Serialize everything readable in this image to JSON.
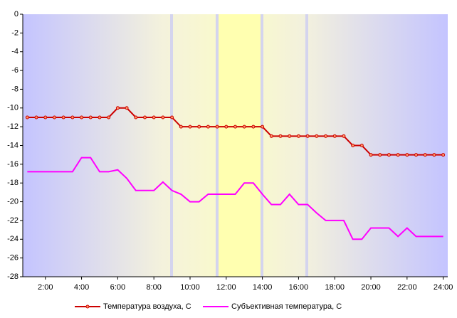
{
  "chart_data": {
    "type": "line",
    "x": [
      1,
      1.5,
      2,
      2.5,
      3,
      3.5,
      4,
      4.5,
      5,
      5.5,
      6,
      6.5,
      7,
      7.5,
      8,
      8.5,
      9,
      9.5,
      10,
      10.5,
      11,
      11.5,
      12,
      12.5,
      13,
      13.5,
      14,
      14.5,
      15,
      15.5,
      16,
      16.5,
      17,
      17.5,
      18,
      18.5,
      19,
      19.5,
      20,
      20.5,
      21,
      21.5,
      22,
      22.5,
      23,
      23.5,
      24
    ],
    "series": [
      {
        "name": "Температура воздуха, С",
        "color": "#cc0000",
        "markers": true,
        "values": [
          -11,
          -11,
          -11,
          -11,
          -11,
          -11,
          -11,
          -11,
          -11,
          -11,
          -10,
          -10,
          -11,
          -11,
          -11,
          -11,
          -11,
          -12,
          -12,
          -12,
          -12,
          -12,
          -12,
          -12,
          -12,
          -12,
          -12,
          -13,
          -13,
          -13,
          -13,
          -13,
          -13,
          -13,
          -13,
          -13,
          -14,
          -14,
          -15,
          -15,
          -15,
          -15,
          -15,
          -15,
          -15,
          -15,
          -15
        ]
      },
      {
        "name": "Субъективная температура, С",
        "color": "#ff00ff",
        "markers": false,
        "values": [
          -16.8,
          -16.8,
          -16.8,
          -16.8,
          -16.8,
          -16.8,
          -15.3,
          -15.3,
          -16.8,
          -16.8,
          -16.6,
          -17.5,
          -18.8,
          -18.8,
          -18.8,
          -17.9,
          -18.8,
          -19.2,
          -20,
          -20,
          -19.2,
          -19.2,
          -19.2,
          -19.2,
          -18,
          -18,
          -19.2,
          -20.3,
          -20.3,
          -19.2,
          -20.3,
          -20.3,
          -21.2,
          -22,
          -22,
          -22,
          -24,
          -24,
          -22.8,
          -22.8,
          -22.8,
          -23.7,
          -22.8,
          -23.7,
          -23.7,
          -23.7,
          -23.7
        ]
      }
    ],
    "xlim": [
      0.75,
      24.25
    ],
    "xticks": [
      {
        "value": 2,
        "label": "2:00"
      },
      {
        "value": 4,
        "label": "4:00"
      },
      {
        "value": 6,
        "label": "6:00"
      },
      {
        "value": 8,
        "label": "8:00"
      },
      {
        "value": 10,
        "label": "10:00"
      },
      {
        "value": 12,
        "label": "12:00"
      },
      {
        "value": 14,
        "label": "14:00"
      },
      {
        "value": 16,
        "label": "16:00"
      },
      {
        "value": 18,
        "label": "18:00"
      },
      {
        "value": 20,
        "label": "20:00"
      },
      {
        "value": 22,
        "label": "22:00"
      },
      {
        "value": 24,
        "label": "24:00"
      }
    ],
    "ylim": [
      -28,
      0
    ],
    "yticks": [
      0,
      -2,
      -4,
      -6,
      -8,
      -10,
      -12,
      -14,
      -16,
      -18,
      -20,
      -22,
      -24,
      -26,
      -28
    ],
    "grid": false
  }
}
